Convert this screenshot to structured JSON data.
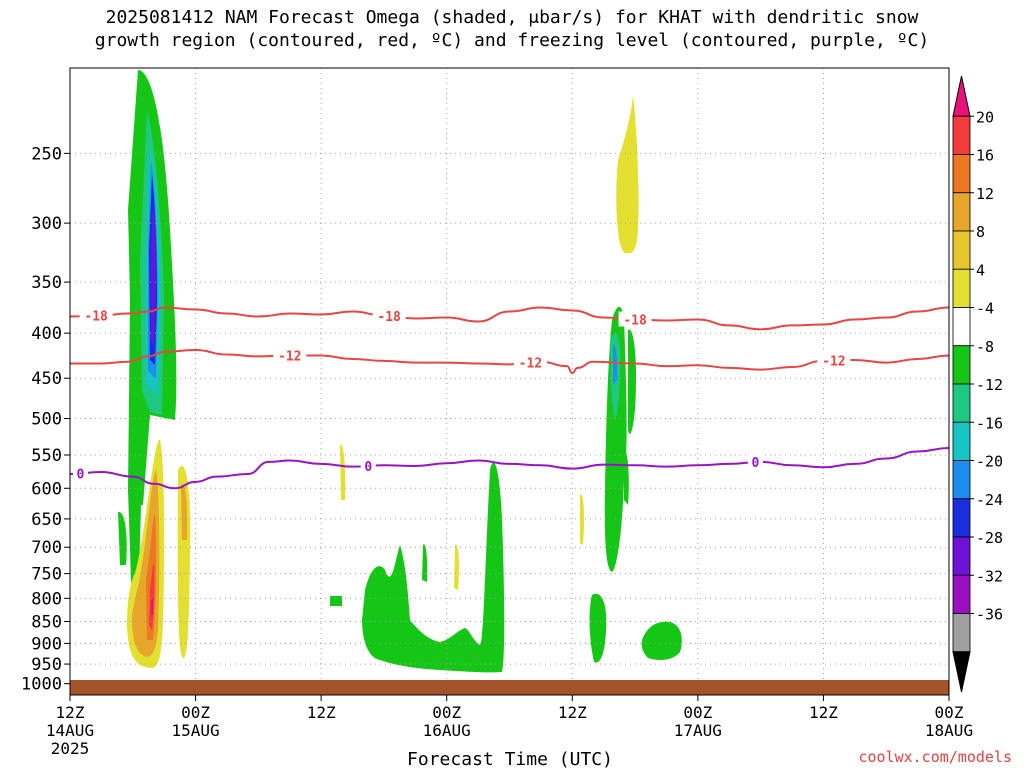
{
  "title": {
    "line1": "2025081412 NAM Forecast Omega (shaded, μbar/s) for KHAT with dendritic snow",
    "line2": "growth region (contoured, red, ºC) and freezing level (contoured, purple, ºC)"
  },
  "credit": "coolwx.com/models",
  "chart_data": {
    "type": "time-height cross section",
    "xlabel": "Forecast Time (UTC)",
    "xlim": [
      0,
      84
    ],
    "ylim": [
      1030,
      200
    ],
    "y_scale": "log-pressure",
    "grid": true,
    "x_ticks": [
      {
        "hour": 0,
        "label": "12Z",
        "sub": "14AUG",
        "year": "2025"
      },
      {
        "hour": 12,
        "label": "00Z",
        "sub": "15AUG",
        "year": ""
      },
      {
        "hour": 24,
        "label": "12Z",
        "sub": "",
        "year": ""
      },
      {
        "hour": 36,
        "label": "00Z",
        "sub": "16AUG",
        "year": ""
      },
      {
        "hour": 48,
        "label": "12Z",
        "sub": "",
        "year": ""
      },
      {
        "hour": 60,
        "label": "00Z",
        "sub": "17AUG",
        "year": ""
      },
      {
        "hour": 72,
        "label": "12Z",
        "sub": "",
        "year": ""
      },
      {
        "hour": 84,
        "label": "00Z",
        "sub": "18AUG",
        "year": ""
      }
    ],
    "y_ticks": [
      250,
      300,
      350,
      400,
      450,
      500,
      550,
      600,
      650,
      700,
      750,
      800,
      850,
      900,
      950,
      1000
    ],
    "colorbar": {
      "labels": [
        "20",
        "16",
        "12",
        "8",
        "4",
        "-4",
        "-8",
        "-12",
        "-16",
        "-20",
        "-24",
        "-28",
        "-32",
        "-36"
      ],
      "colors": [
        "#e8127a",
        "#f33b3b",
        "#ee7722",
        "#e7a52a",
        "#e6c82c",
        "#e3e032",
        "#ffffff",
        "#16c616",
        "#1ec880",
        "#16c4c4",
        "#1b8ef0",
        "#1a2ee0",
        "#6f12d8",
        "#9a10c0",
        "#a0a0a0",
        "#000000"
      ]
    },
    "contours": [
      {
        "name": "-18",
        "color": "#e84545",
        "x": [
          0,
          3,
          5.5,
          7.5,
          9,
          12,
          15,
          18,
          21,
          24,
          27,
          30,
          33,
          36,
          39,
          42,
          45,
          48,
          51,
          54,
          57,
          60,
          63,
          66,
          69,
          72,
          75,
          78,
          81,
          84
        ],
        "p": [
          383,
          382,
          380,
          378,
          374,
          376,
          380,
          383,
          380,
          381,
          378,
          382,
          385,
          384,
          388,
          378,
          374,
          377,
          384,
          386,
          387,
          386,
          392,
          396,
          392,
          391,
          386,
          384,
          378,
          374
        ],
        "labels_at": [
          2.5,
          30.5,
          54
        ]
      },
      {
        "name": "-12",
        "color": "#e84545",
        "x": [
          0,
          3,
          5.5,
          7.5,
          9,
          12,
          15,
          18,
          21,
          24,
          27,
          30,
          33,
          36,
          39,
          42,
          45,
          47.5,
          48,
          48.5,
          50,
          54,
          57,
          60,
          63,
          66,
          69,
          72,
          75,
          78,
          81,
          84
        ],
        "p": [
          433,
          433,
          431,
          425,
          420,
          418,
          423,
          425,
          424,
          424,
          428,
          430,
          432,
          432,
          433,
          434,
          431,
          436,
          444,
          438,
          431,
          433,
          436,
          435,
          438,
          440,
          437,
          430,
          429,
          432,
          428,
          424
        ],
        "labels_at": [
          21,
          44,
          73
        ]
      },
      {
        "name": "0",
        "color": "#9a12c6",
        "x": [
          0,
          3,
          6,
          8,
          10,
          12,
          14,
          17,
          19,
          21,
          24,
          27,
          30,
          33,
          36,
          39,
          42,
          45,
          48,
          51,
          54,
          57,
          60,
          63,
          66,
          69,
          72,
          75,
          78,
          81,
          84
        ],
        "p": [
          578,
          575,
          582,
          593,
          600,
          590,
          582,
          578,
          560,
          558,
          563,
          567,
          565,
          566,
          562,
          558,
          563,
          565,
          570,
          564,
          565,
          567,
          565,
          563,
          560,
          565,
          568,
          563,
          555,
          545,
          540
        ],
        "labels_at": [
          1,
          28.5,
          65.5
        ]
      }
    ],
    "shading": [
      {
        "x": 9.5,
        "p": 330,
        "value": -30
      },
      {
        "x": 10,
        "p": 880,
        "value": 18
      },
      {
        "x": 13.5,
        "p": 330,
        "value": 6
      },
      {
        "x": 44,
        "p": 530,
        "value": -6
      },
      {
        "x": 57,
        "p": 280,
        "value": 6
      },
      {
        "x": 52,
        "p": 460,
        "value": -20
      }
    ]
  }
}
